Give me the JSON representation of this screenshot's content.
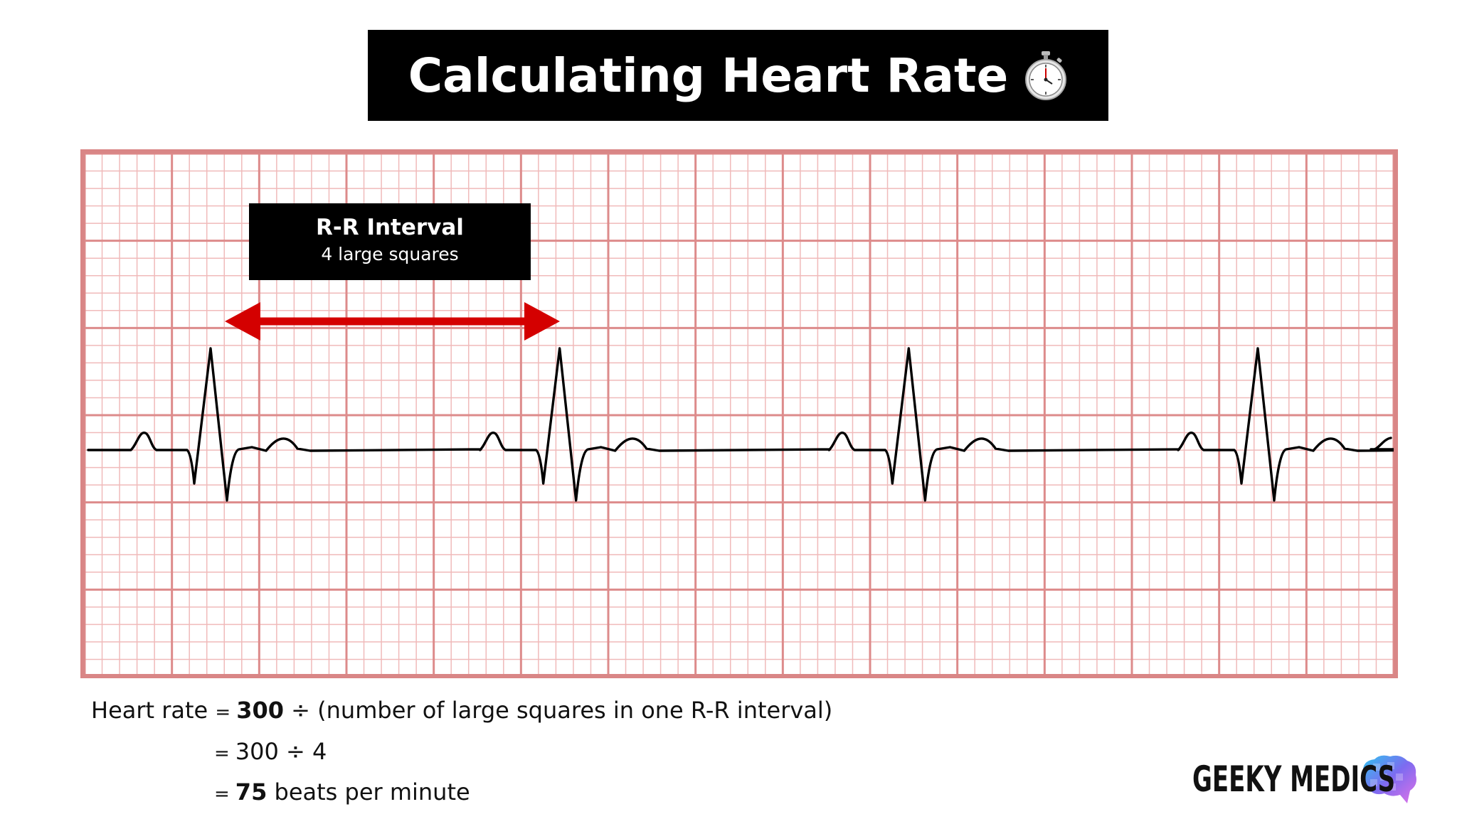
{
  "title": "Calculating Heart Rate",
  "icons": {
    "title_icon": "stopwatch-icon",
    "logo_icon": "brain-icon",
    "interval_marker": "double-arrow-icon"
  },
  "colors": {
    "title_bg": "#000000",
    "grid_major": "#dd8b8b",
    "grid_minor": "#f0baba",
    "frame": "#d98686",
    "trace": "#000000",
    "arrow": "#d40000",
    "logo_gradient": [
      "#2ec5f0",
      "#7d6bf0",
      "#e072e8"
    ]
  },
  "ecg": {
    "large_squares_wide": 15,
    "large_squares_high": 6,
    "small_per_large": 5,
    "r_r_interval_large_squares": 4,
    "beats_shown": 4
  },
  "rr_label": {
    "title": "R-R Interval",
    "subtitle": "4 large squares"
  },
  "formula": {
    "line1_label": "Heart rate",
    "line1_eq": "=",
    "line1_num": "300",
    "line1_rest": "÷ (number of large squares in one R-R interval)",
    "line2_eq": "=",
    "line2_text": "300 ÷ 4",
    "line3_eq": "=",
    "line3_num": "75",
    "line3_rest": "beats per minute"
  },
  "logo": {
    "text": "GEEKY MEDICS"
  }
}
